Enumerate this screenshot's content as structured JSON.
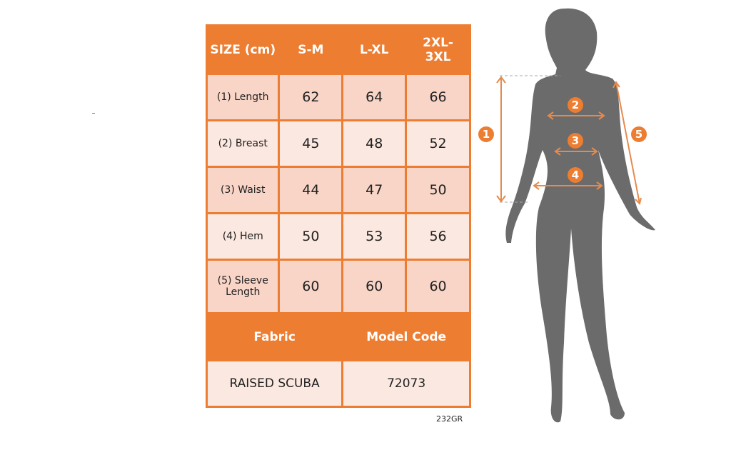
{
  "header": {
    "size": "SIZE (cm)",
    "cols": [
      "S-M",
      "L-XL",
      "2XL-3XL"
    ]
  },
  "rows": [
    {
      "label": "(1) Length",
      "values": [
        "62",
        "64",
        "66"
      ]
    },
    {
      "label": "(2) Breast",
      "values": [
        "45",
        "48",
        "52"
      ]
    },
    {
      "label": "(3) Waist",
      "values": [
        "44",
        "47",
        "50"
      ]
    },
    {
      "label": "(4) Hem",
      "values": [
        "50",
        "53",
        "56"
      ]
    },
    {
      "label": "(5) Sleeve Length",
      "values": [
        "60",
        "60",
        "60"
      ]
    }
  ],
  "fabric": {
    "label": "Fabric",
    "value": "RAISED SCUBA"
  },
  "model_code": {
    "label": "Model Code",
    "value": "72073"
  },
  "code": "232GR",
  "markers": [
    "1",
    "2",
    "3",
    "4",
    "5"
  ],
  "colors": {
    "accent": "#ed7d31",
    "cell_dark": "#f8d5c7",
    "cell_light": "#fbe8e0",
    "silhouette": "#6b6b6b"
  }
}
